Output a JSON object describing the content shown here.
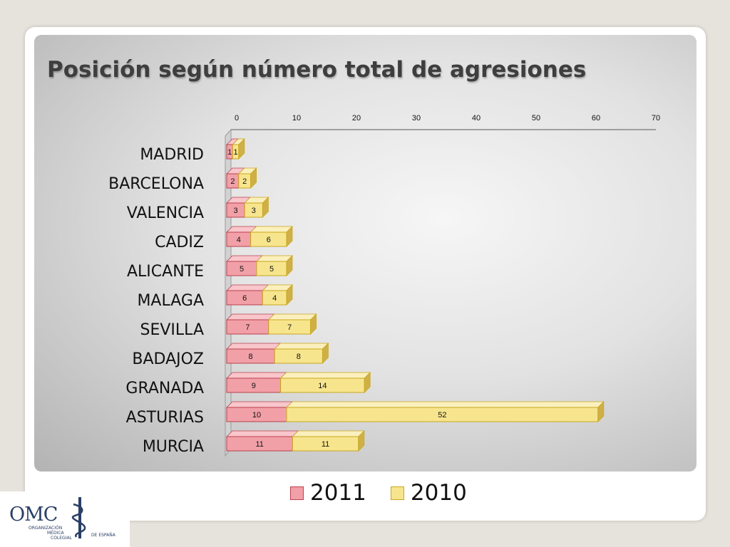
{
  "colors": {
    "series_2011": "#f2a0a8",
    "series_2010": "#f7e58e",
    "edge_2011": "#b9414d",
    "edge_2010": "#c9a71d",
    "logo": "#2a3f66"
  },
  "logo": {
    "name": "OMC",
    "line1": "ORGANIZACIÓN",
    "line2": "MÉDICA",
    "line3": "COLEGIAL",
    "line4": "DE ESPAÑA",
    "icon": "caduceus-icon"
  },
  "chart_data": {
    "type": "bar",
    "orientation": "horizontal",
    "stacked": true,
    "three_d": true,
    "title": "Posición según número total de agresiones",
    "categories": [
      "MADRID",
      "BARCELONA",
      "VALENCIA",
      "CADIZ",
      "ALICANTE",
      "MALAGA",
      "SEVILLA",
      "BADAJOZ",
      "GRANADA",
      "ASTURIAS",
      "MURCIA"
    ],
    "series": [
      {
        "name": "2011",
        "values": [
          1,
          2,
          3,
          4,
          5,
          6,
          7,
          8,
          9,
          10,
          11
        ]
      },
      {
        "name": "2010",
        "values": [
          1,
          2,
          3,
          6,
          5,
          4,
          7,
          8,
          14,
          52,
          11
        ]
      }
    ],
    "xlim": [
      0,
      70
    ],
    "xticks": [
      0,
      10,
      20,
      30,
      40,
      50,
      60,
      70
    ],
    "xaxis_position": "top",
    "data_labels": true,
    "grid": false,
    "legend": "bottom"
  }
}
